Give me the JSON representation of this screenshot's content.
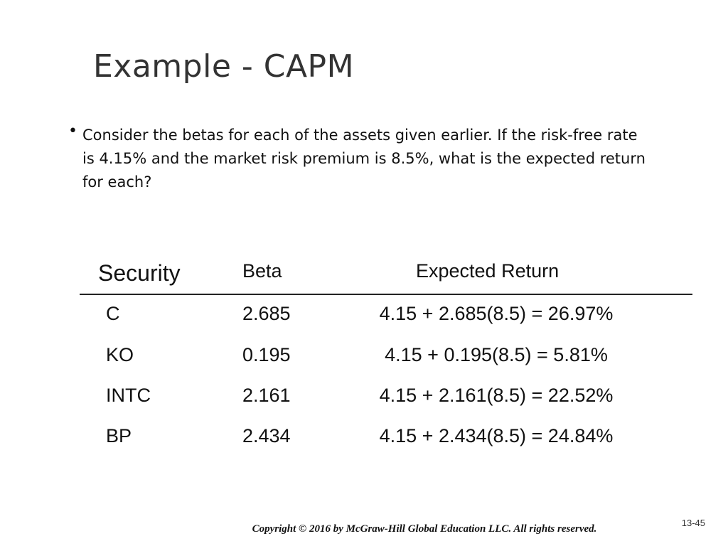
{
  "slide": {
    "title": "Example - CAPM",
    "bullet_symbol": "•",
    "bullet_text": "Consider the betas for each of the assets given earlier. If the risk-free rate is 4.15% and the market risk premium is 8.5%, what is the expected return for each?",
    "table": {
      "headers": {
        "security": "Security",
        "beta": "Beta",
        "expected_return": "Expected Return"
      },
      "rows": [
        {
          "security": "C",
          "beta": "2.685",
          "expected_return": "4.15 + 2.685(8.5) = 26.97%"
        },
        {
          "security": "KO",
          "beta": "0.195",
          "expected_return": "4.15 + 0.195(8.5) = 5.81%"
        },
        {
          "security": "INTC",
          "beta": "2.161",
          "expected_return": "4.15 + 2.161(8.5) = 22.52%"
        },
        {
          "security": "BP",
          "beta": "2.434",
          "expected_return": "4.15 + 2.434(8.5) = 24.84%"
        }
      ]
    },
    "copyright": "Copyright © 2016 by McGraw-Hill Global Education LLC. All rights reserved.",
    "slide_number": "13-45"
  }
}
